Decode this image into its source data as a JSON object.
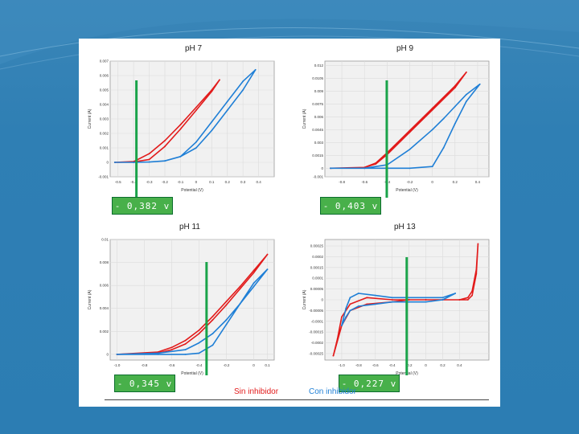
{
  "colors": {
    "background": "#2c7db3",
    "sin_inhibidor": "#e21b1b",
    "con_inhibidor": "#1f7fd6",
    "marker_line": "#1aa34a",
    "label_fill": "#48b04a"
  },
  "legend": {
    "sin_inhibidor": "Sin inhibidor",
    "con_inhibidor": "Con inhibidor"
  },
  "chart_data": [
    {
      "type": "line",
      "title": "pH 7",
      "xlabel": "Potential (V)",
      "ylabel": "Current (A)",
      "xlim": [
        -0.55,
        0.5
      ],
      "ylim": [
        -0.001,
        0.007
      ],
      "x_ticks": [
        "-0.5",
        "-0.4",
        "-0.3",
        "-0.2",
        "-0.1",
        "0",
        "0.1",
        "0.2",
        "0.3",
        "0.4"
      ],
      "y_ticks": [
        "-0.001",
        "0",
        "0.001",
        "0.002",
        "0.003",
        "0.004",
        "0.005",
        "0.006",
        "0.007"
      ],
      "marker_value": "- 0,382 v",
      "marker_x": -0.382,
      "series": [
        {
          "name": "Sin inhibidor",
          "color": "#e21b1b",
          "x": [
            -0.52,
            -0.4,
            -0.3,
            -0.2,
            -0.1,
            0.0,
            0.1,
            0.15,
            0.1,
            0.0,
            -0.1,
            -0.2,
            -0.3,
            -0.4,
            -0.52
          ],
          "y": [
            0.0,
            5e-05,
            0.0006,
            0.0015,
            0.0026,
            0.0038,
            0.005,
            0.0057,
            0.0049,
            0.0036,
            0.0023,
            0.0011,
            0.0002,
            3e-05,
            0.0
          ]
        },
        {
          "name": "Con inhibidor",
          "color": "#1f7fd6",
          "x": [
            -0.52,
            -0.4,
            -0.3,
            -0.2,
            -0.1,
            0.0,
            0.1,
            0.2,
            0.3,
            0.38,
            0.3,
            0.2,
            0.1,
            0.0,
            -0.1,
            -0.2,
            -0.3,
            -0.4,
            -0.52
          ],
          "y": [
            0.0,
            0.0,
            2e-05,
            0.0001,
            0.0004,
            0.001,
            0.0022,
            0.0036,
            0.005,
            0.0064,
            0.0056,
            0.0042,
            0.0028,
            0.0014,
            0.0004,
            0.0001,
            2e-05,
            0.0,
            0.0
          ]
        }
      ]
    },
    {
      "type": "line",
      "title": "pH 9",
      "xlabel": "Potential (V)",
      "ylabel": "Current (A)",
      "xlim": [
        -0.95,
        0.5
      ],
      "ylim": [
        -0.001,
        0.0125
      ],
      "x_ticks": [
        "-0.8",
        "-0.6",
        "-0.4",
        "-0.2",
        "0",
        "0.2",
        "0.4"
      ],
      "y_ticks": [
        "-0.001",
        "0",
        "0.0015",
        "0.003",
        "0.0045",
        "0.006",
        "0.0075",
        "0.009",
        "0.0105",
        "0.012"
      ],
      "marker_value": "- 0,403 v",
      "marker_x": -0.403,
      "series": [
        {
          "name": "Sin inhibidor",
          "color": "#e21b1b",
          "x": [
            -0.9,
            -0.6,
            -0.5,
            -0.4,
            -0.2,
            0.0,
            0.2,
            0.3,
            0.2,
            0.0,
            -0.2,
            -0.4,
            -0.5,
            -0.6,
            -0.9
          ],
          "y": [
            0.0,
            0.0001,
            0.0005,
            0.0016,
            0.0042,
            0.0068,
            0.0094,
            0.0112,
            0.0096,
            0.007,
            0.0044,
            0.0018,
            0.0006,
            0.0001,
            0.0
          ]
        },
        {
          "name": "Con inhibidor",
          "color": "#1f7fd6",
          "x": [
            -0.9,
            -0.6,
            -0.4,
            -0.2,
            0.0,
            0.1,
            0.2,
            0.3,
            0.42,
            0.3,
            0.2,
            0.1,
            0.0,
            -0.2,
            -0.4,
            -0.6,
            -0.9
          ],
          "y": [
            0.0,
            0.0,
            0.0004,
            0.0022,
            0.0045,
            0.0058,
            0.0072,
            0.0086,
            0.0098,
            0.0078,
            0.0052,
            0.0024,
            0.0002,
            0.0,
            0.0,
            0.0,
            0.0
          ]
        }
      ]
    },
    {
      "type": "line",
      "title": "pH 11",
      "xlabel": "Potential (V)",
      "ylabel": "Current (A)",
      "xlim": [
        -1.05,
        0.15
      ],
      "ylim": [
        -0.0005,
        0.01
      ],
      "x_ticks": [
        "-1.0",
        "-0.8",
        "-0.6",
        "-0.4",
        "-0.2",
        "0",
        "0.1"
      ],
      "y_ticks": [
        "0",
        "0.002",
        "0.004",
        "0.006",
        "0.008",
        "0.01"
      ],
      "marker_value": "- 0,345 v",
      "marker_x": -0.345,
      "series": [
        {
          "name": "Sin inhibidor",
          "color": "#e21b1b",
          "x": [
            -1.0,
            -0.7,
            -0.6,
            -0.5,
            -0.4,
            -0.3,
            -0.2,
            -0.1,
            0.0,
            0.1,
            0.0,
            -0.1,
            -0.2,
            -0.3,
            -0.4,
            -0.5,
            -0.6,
            -0.7,
            -1.0
          ],
          "y": [
            0.0,
            0.0002,
            0.0006,
            0.0012,
            0.0021,
            0.0033,
            0.0046,
            0.0059,
            0.0073,
            0.0087,
            0.0071,
            0.0057,
            0.0043,
            0.003,
            0.0018,
            0.0009,
            0.0004,
            0.0001,
            0.0
          ]
        },
        {
          "name": "Con inhibidor",
          "color": "#1f7fd6",
          "x": [
            -1.0,
            -0.7,
            -0.5,
            -0.4,
            -0.3,
            -0.2,
            -0.1,
            0.0,
            0.1,
            0.0,
            -0.1,
            -0.2,
            -0.3,
            -0.4,
            -0.5,
            -0.7,
            -1.0
          ],
          "y": [
            0.0,
            0.0001,
            0.0004,
            0.001,
            0.0018,
            0.003,
            0.0044,
            0.0059,
            0.0074,
            0.0062,
            0.0044,
            0.0026,
            0.0008,
            0.0001,
            0.0,
            0.0,
            0.0
          ]
        }
      ]
    },
    {
      "type": "line",
      "title": "pH 13",
      "xlabel": "Potential (V)",
      "ylabel": "Current (A)",
      "xlim": [
        -1.2,
        0.75
      ],
      "ylim": [
        -0.00028,
        0.00028
      ],
      "x_ticks": [
        "-1.0",
        "-0.8",
        "-0.6",
        "-0.4",
        "-0.2",
        "0",
        "0.2",
        "0.4"
      ],
      "y_ticks": [
        "-0.00025",
        "-0.0002",
        "-0.00015",
        "-0.0001",
        "-0.00005",
        "0",
        "0.00005",
        "0.0001",
        "0.00015",
        "0.0002",
        "0.00025"
      ],
      "marker_value": "- 0,227 v",
      "marker_x": -0.227,
      "series": [
        {
          "name": "Sin inhibidor",
          "color": "#e21b1b",
          "x": [
            -1.1,
            -1.05,
            -1.0,
            -0.9,
            -0.7,
            -0.4,
            -0.2,
            0.0,
            0.2,
            0.4,
            0.5,
            0.55,
            0.6,
            0.62,
            0.6,
            0.55,
            0.5,
            0.4,
            0.2,
            0.0,
            -0.2,
            -0.4,
            -0.7,
            -0.9,
            -1.0,
            -1.05,
            -1.1
          ],
          "y": [
            -0.00026,
            -0.00018,
            -8e-05,
            -2e-05,
            1e-05,
            0.0,
            0.0,
            0.0,
            0.0,
            0.0,
            1e-05,
            4e-05,
            0.00014,
            0.00026,
            0.00012,
            2e-05,
            0.0,
            0.0,
            0.0,
            0.0,
            0.0,
            -1e-05,
            -2e-05,
            -5e-05,
            -0.00012,
            -0.00019,
            -0.00026
          ]
        },
        {
          "name": "Con inhibidor",
          "color": "#1f7fd6",
          "x": [
            -1.0,
            -0.95,
            -0.9,
            -0.8,
            -0.6,
            -0.4,
            -0.2,
            0.0,
            0.2,
            0.35,
            0.2,
            0.0,
            -0.2,
            -0.4,
            -0.6,
            -0.8,
            -0.9,
            -0.95,
            -1.0
          ],
          "y": [
            -0.00012,
            -4e-05,
            1e-05,
            3e-05,
            2e-05,
            1e-05,
            1e-05,
            1e-05,
            1e-05,
            3e-05,
            0.0,
            -1e-05,
            -1e-05,
            -1e-05,
            -2e-05,
            -3e-05,
            -5e-05,
            -8e-05,
            -0.00012
          ]
        }
      ]
    }
  ]
}
